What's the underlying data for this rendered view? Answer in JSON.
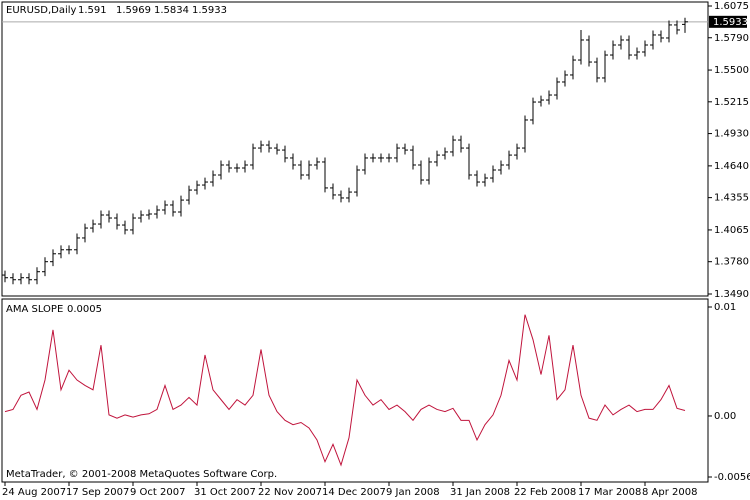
{
  "chart_data": [
    {
      "type": "ohlc",
      "symbol": "EURUSD,Daily",
      "ohlc": [
        [
          1.366,
          1.37,
          1.3596,
          1.3636
        ],
        [
          1.3636,
          1.3676,
          1.3578,
          1.3618
        ],
        [
          1.3618,
          1.3676,
          1.3578,
          1.3636
        ],
        [
          1.3636,
          1.3676,
          1.3578,
          1.3618
        ],
        [
          1.3618,
          1.373,
          1.3578,
          1.369
        ],
        [
          1.369,
          1.382,
          1.365,
          1.378
        ],
        [
          1.378,
          1.3891,
          1.374,
          1.3851
        ],
        [
          1.3851,
          1.3927,
          1.3811,
          1.3887
        ],
        [
          1.3887,
          1.3927,
          1.3847,
          1.3887
        ],
        [
          1.3887,
          1.4033,
          1.3847,
          1.3993
        ],
        [
          1.3993,
          1.4122,
          1.3953,
          1.4082
        ],
        [
          1.4082,
          1.4158,
          1.4042,
          1.4118
        ],
        [
          1.4118,
          1.4239,
          1.4078,
          1.4199
        ],
        [
          1.4199,
          1.4239,
          1.4132,
          1.4172
        ],
        [
          1.4172,
          1.4212,
          1.4069,
          1.4109
        ],
        [
          1.4109,
          1.4149,
          1.4025,
          1.4065
        ],
        [
          1.4065,
          1.4212,
          1.4025,
          1.4172
        ],
        [
          1.4172,
          1.4239,
          1.4132,
          1.4199
        ],
        [
          1.4199,
          1.4248,
          1.4159,
          1.4208
        ],
        [
          1.4208,
          1.4284,
          1.4168,
          1.4244
        ],
        [
          1.4244,
          1.4329,
          1.4204,
          1.4289
        ],
        [
          1.4289,
          1.4329,
          1.4186,
          1.4226
        ],
        [
          1.4226,
          1.4373,
          1.4186,
          1.4333
        ],
        [
          1.4333,
          1.4463,
          1.4293,
          1.4423
        ],
        [
          1.4423,
          1.4508,
          1.4383,
          1.4468
        ],
        [
          1.4468,
          1.4535,
          1.4428,
          1.4495
        ],
        [
          1.4495,
          1.4598,
          1.4455,
          1.4558
        ],
        [
          1.4558,
          1.4688,
          1.4518,
          1.4648
        ],
        [
          1.4648,
          1.4688,
          1.4581,
          1.4621
        ],
        [
          1.4621,
          1.4661,
          1.4581,
          1.4621
        ],
        [
          1.4621,
          1.4688,
          1.4581,
          1.4648
        ],
        [
          1.4648,
          1.484,
          1.4608,
          1.48
        ],
        [
          1.48,
          1.4867,
          1.476,
          1.4827
        ],
        [
          1.4827,
          1.4867,
          1.476,
          1.48
        ],
        [
          1.48,
          1.484,
          1.4742,
          1.4782
        ],
        [
          1.4782,
          1.4822,
          1.4671,
          1.4711
        ],
        [
          1.4711,
          1.4751,
          1.4608,
          1.4648
        ],
        [
          1.4648,
          1.4688,
          1.4518,
          1.4558
        ],
        [
          1.4558,
          1.4688,
          1.4518,
          1.4648
        ],
        [
          1.4648,
          1.4715,
          1.4608,
          1.4675
        ],
        [
          1.4675,
          1.4715,
          1.4402,
          1.4442
        ],
        [
          1.4442,
          1.4482,
          1.4339,
          1.4379
        ],
        [
          1.4379,
          1.4419,
          1.4312,
          1.4352
        ],
        [
          1.4352,
          1.4445,
          1.4312,
          1.4405
        ],
        [
          1.4405,
          1.4643,
          1.4365,
          1.4603
        ],
        [
          1.4603,
          1.4751,
          1.4563,
          1.4711
        ],
        [
          1.4711,
          1.4751,
          1.4671,
          1.4711
        ],
        [
          1.4711,
          1.4751,
          1.4671,
          1.4711
        ],
        [
          1.4711,
          1.4751,
          1.4671,
          1.4711
        ],
        [
          1.4711,
          1.484,
          1.4671,
          1.48
        ],
        [
          1.48,
          1.484,
          1.4742,
          1.4782
        ],
        [
          1.4782,
          1.4822,
          1.4608,
          1.4648
        ],
        [
          1.4648,
          1.4688,
          1.4473,
          1.4513
        ],
        [
          1.4513,
          1.4715,
          1.4473,
          1.4675
        ],
        [
          1.4675,
          1.4777,
          1.4635,
          1.4737
        ],
        [
          1.4737,
          1.4805,
          1.4697,
          1.4765
        ],
        [
          1.4765,
          1.4912,
          1.4725,
          1.4872
        ],
        [
          1.4872,
          1.4912,
          1.476,
          1.48
        ],
        [
          1.48,
          1.484,
          1.4518,
          1.4558
        ],
        [
          1.4558,
          1.4598,
          1.4455,
          1.4495
        ],
        [
          1.4495,
          1.4571,
          1.4455,
          1.4531
        ],
        [
          1.4531,
          1.4643,
          1.4491,
          1.4603
        ],
        [
          1.4603,
          1.4688,
          1.4563,
          1.4648
        ],
        [
          1.4648,
          1.4777,
          1.4608,
          1.4737
        ],
        [
          1.4737,
          1.484,
          1.4697,
          1.48
        ],
        [
          1.48,
          1.5092,
          1.476,
          1.5052
        ],
        [
          1.5052,
          1.5253,
          1.5012,
          1.5213
        ],
        [
          1.5213,
          1.5271,
          1.5173,
          1.5231
        ],
        [
          1.5231,
          1.5316,
          1.5191,
          1.5276
        ],
        [
          1.5276,
          1.5433,
          1.5236,
          1.5393
        ],
        [
          1.5393,
          1.5496,
          1.5353,
          1.5456
        ],
        [
          1.5456,
          1.563,
          1.5416,
          1.559
        ],
        [
          1.559,
          1.586,
          1.555,
          1.577
        ],
        [
          1.577,
          1.581,
          1.5532,
          1.5572
        ],
        [
          1.5572,
          1.5612,
          1.5389,
          1.5429
        ],
        [
          1.5429,
          1.5675,
          1.5389,
          1.5635
        ],
        [
          1.5635,
          1.5765,
          1.5595,
          1.5725
        ],
        [
          1.5725,
          1.581,
          1.5685,
          1.577
        ],
        [
          1.577,
          1.581,
          1.5595,
          1.5635
        ],
        [
          1.5635,
          1.5702,
          1.5595,
          1.5662
        ],
        [
          1.5662,
          1.5765,
          1.5622,
          1.5725
        ],
        [
          1.5725,
          1.5855,
          1.5685,
          1.5815
        ],
        [
          1.5815,
          1.5855,
          1.5748,
          1.5788
        ],
        [
          1.5788,
          1.5945,
          1.5748,
          1.5905
        ],
        [
          1.5905,
          1.5945,
          1.582,
          1.586
        ],
        [
          1.591,
          1.5969,
          1.5834,
          1.5933
        ]
      ],
      "color": "#000000",
      "ylim": [
        1.349,
        1.6075
      ],
      "yticks": [
        {
          "value": 1.6075,
          "label": "1.6075"
        },
        {
          "value": 1.579,
          "label": "1.5790"
        },
        {
          "value": 1.55,
          "label": "1.5500"
        },
        {
          "value": 1.5215,
          "label": "1.5215"
        },
        {
          "value": 1.493,
          "label": "1.4930"
        },
        {
          "value": 1.464,
          "label": "1.4640"
        },
        {
          "value": 1.4355,
          "label": "1.4355"
        },
        {
          "value": 1.4065,
          "label": "1.4065"
        },
        {
          "value": 1.378,
          "label": "1.3780"
        },
        {
          "value": 1.349,
          "label": "1.3490"
        }
      ],
      "xticks": [
        {
          "value": 0,
          "label": "24 Aug 2007"
        },
        {
          "value": 8,
          "label": "17 Sep 2007"
        },
        {
          "value": 16,
          "label": "9 Oct 2007"
        },
        {
          "value": 24,
          "label": "31 Oct 2007"
        },
        {
          "value": 32,
          "label": "22 Nov 2007"
        },
        {
          "value": 40,
          "label": "14 Dec 2007"
        },
        {
          "value": 48,
          "label": "9 Jan 2008"
        },
        {
          "value": 56,
          "label": "31 Jan 2008"
        },
        {
          "value": 64,
          "label": "22 Feb 2008"
        },
        {
          "value": 72,
          "label": "17 Mar 2008"
        },
        {
          "value": 80,
          "label": "8 Apr 2008"
        }
      ]
    },
    {
      "type": "line",
      "name": "AMA SLOPE",
      "color": "#c0143c",
      "values": [
        0.0004,
        0.0006,
        0.0019,
        0.0022,
        0.0006,
        0.0033,
        0.0079,
        0.0024,
        0.0042,
        0.0033,
        0.0028,
        0.0024,
        0.0065,
        0.0001,
        -0.0002,
        0.0001,
        -0.0001,
        0.0001,
        0.0002,
        0.0006,
        0.0028,
        0.0006,
        0.001,
        0.0017,
        0.001,
        0.0056,
        0.0024,
        0.0015,
        0.0006,
        0.0015,
        0.001,
        0.0019,
        0.0061,
        0.0019,
        0.0004,
        -0.0004,
        -0.0008,
        -0.0006,
        -0.0011,
        -0.0022,
        -0.0042,
        -0.0026,
        -0.0045,
        -0.002,
        0.0033,
        0.0019,
        0.001,
        0.0015,
        0.0006,
        0.001,
        0.0004,
        -0.0004,
        0.0006,
        0.001,
        0.0006,
        0.0004,
        0.0007,
        -0.0004,
        -0.0004,
        -0.0022,
        -0.0008,
        0.0001,
        0.0019,
        0.0051,
        0.0033,
        0.0093,
        0.007,
        0.0038,
        0.0074,
        0.0015,
        0.0024,
        0.0065,
        0.0019,
        -0.0002,
        -0.0004,
        0.001,
        0.0001,
        0.0006,
        0.001,
        0.0004,
        0.0006,
        0.0006,
        0.0015,
        0.0028,
        0.0007,
        0.0005
      ],
      "ylim": [
        -0.0056,
        0.01
      ],
      "yticks": [
        0.01,
        {
          "value": 0,
          "label": "0.00"
        },
        -0.0056
      ],
      "footer": "MetaTrader, © 2001-2008 MetaQuotes Software Corp."
    }
  ]
}
